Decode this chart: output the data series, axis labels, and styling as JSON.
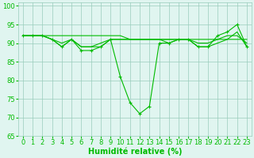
{
  "x": [
    0,
    1,
    2,
    3,
    4,
    5,
    6,
    7,
    8,
    9,
    10,
    11,
    12,
    13,
    14,
    15,
    16,
    17,
    18,
    19,
    20,
    21,
    22,
    23
  ],
  "y_main": [
    92,
    92,
    92,
    91,
    89,
    91,
    88,
    88,
    89,
    91,
    81,
    74,
    71,
    73,
    90,
    90,
    91,
    91,
    89,
    89,
    92,
    93,
    95,
    89
  ],
  "y_line2": [
    92,
    92,
    92,
    92,
    92,
    92,
    92,
    92,
    92,
    92,
    92,
    91,
    91,
    91,
    91,
    91,
    91,
    91,
    91,
    91,
    91,
    91,
    91,
    91
  ],
  "y_line3": [
    92,
    92,
    92,
    91,
    90,
    91,
    89,
    89,
    90,
    91,
    91,
    91,
    91,
    91,
    91,
    91,
    91,
    91,
    90,
    90,
    91,
    92,
    92,
    90
  ],
  "y_line4": [
    92,
    92,
    92,
    91,
    89,
    91,
    89,
    89,
    89,
    91,
    91,
    91,
    91,
    91,
    91,
    90,
    91,
    91,
    89,
    89,
    90,
    91,
    93,
    89
  ],
  "line_color": "#00bb00",
  "bg_color": "#e0f5f0",
  "grid_color": "#99ccbb",
  "xlabel": "Humidité relative (%)",
  "ylim": [
    65,
    101
  ],
  "xlim": [
    -0.5,
    23.5
  ],
  "yticks": [
    65,
    70,
    75,
    80,
    85,
    90,
    95,
    100
  ],
  "xticks": [
    0,
    1,
    2,
    3,
    4,
    5,
    6,
    7,
    8,
    9,
    10,
    11,
    12,
    13,
    14,
    15,
    16,
    17,
    18,
    19,
    20,
    21,
    22,
    23
  ],
  "marker": "+",
  "linewidth": 0.8,
  "markersize": 3,
  "xlabel_fontsize": 7,
  "tick_fontsize": 6,
  "tick_color": "#00bb00",
  "xlabel_color": "#00bb00"
}
